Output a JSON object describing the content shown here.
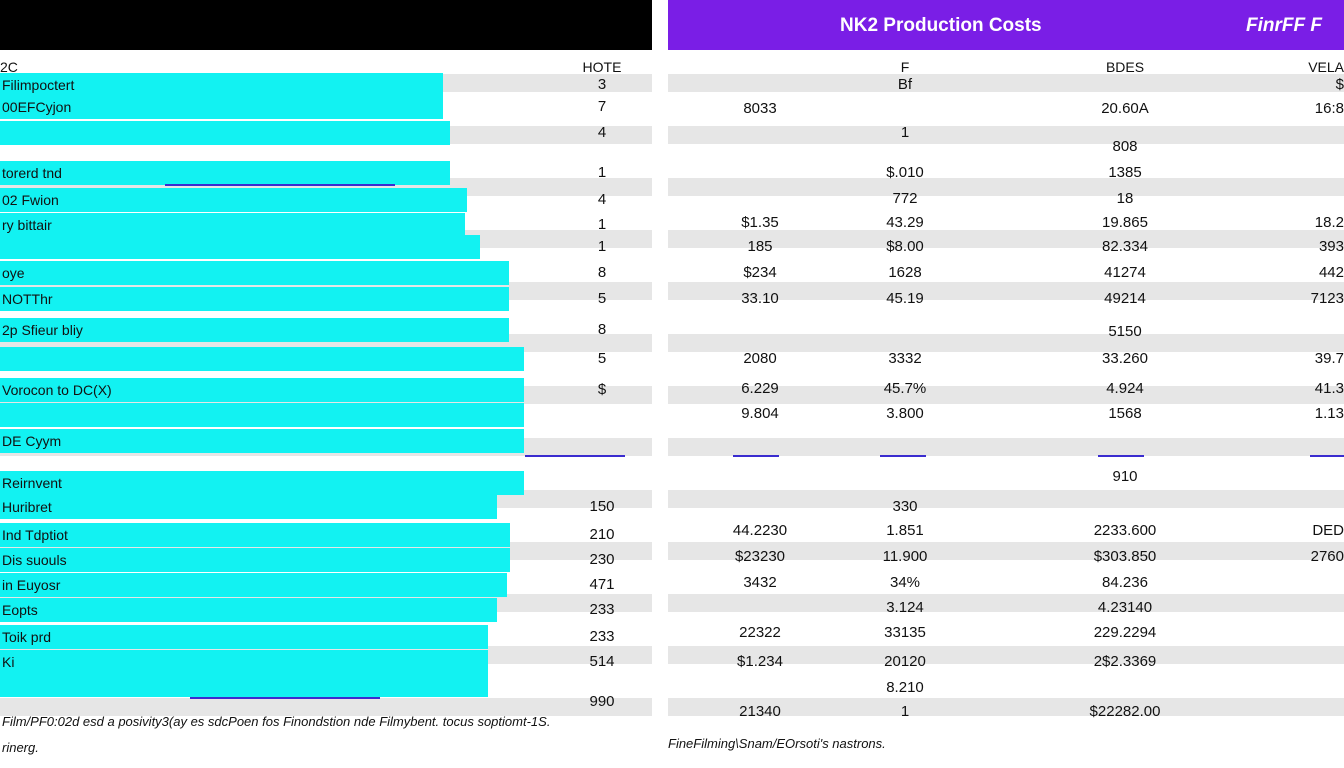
{
  "left_panel": {
    "header": [
      "2C",
      "HOTE"
    ],
    "rows": [
      [
        "Filimpoctert",
        "3"
      ],
      [
        "00EFCyjon",
        "7"
      ],
      [
        null,
        "4"
      ],
      [
        "torerd tnd",
        "1"
      ],
      [
        "02 Fwion",
        "4"
      ],
      [
        "ry bittair",
        "1"
      ],
      [
        null,
        "1"
      ],
      [
        "oye",
        "8"
      ],
      [
        "NOTThr",
        "5"
      ],
      [
        "2p Sfieur bliy",
        "8"
      ],
      [
        null,
        "5"
      ],
      [
        "Vorocon to DC(X)",
        "$"
      ],
      [
        null,
        null
      ],
      [
        "DE Cyym",
        null
      ],
      [
        "Reirnvent",
        null
      ],
      [
        "Huribret",
        "150"
      ],
      [
        "Ind Tdptiot",
        "210"
      ],
      [
        "Dis suouls",
        "230"
      ],
      [
        "in Euyosr",
        "471"
      ],
      [
        "Eopts",
        "233"
      ],
      [
        "Toik prd",
        "233"
      ],
      [
        "Ki",
        "514"
      ],
      [
        null,
        null
      ],
      [
        null,
        "990"
      ]
    ],
    "footer": [
      "Film/PF0:02d esd a posivity3(ay es sdcPoen fos Finondstion nde Filmybent. tocus soptiomt-1S.",
      "rinerg."
    ]
  },
  "right_panel": {
    "title": "NK2 Production Costs",
    "title_right": "FinrFF F",
    "header": [
      null,
      "F",
      "BDES",
      "VELA"
    ],
    "rows": [
      [
        null,
        "Bf",
        null,
        "$"
      ],
      [
        "8033",
        null,
        "20.60A",
        "16:8"
      ],
      [
        null,
        "1",
        null,
        null
      ],
      [
        null,
        null,
        "808",
        null
      ],
      [
        null,
        "$.010",
        "1385",
        null
      ],
      [
        null,
        "772",
        "18",
        null
      ],
      [
        "$1.35",
        "43.29",
        "19.865",
        "18.2"
      ],
      [
        "185",
        "$8.00",
        "82.334",
        "393"
      ],
      [
        "$234",
        "1628",
        "41274",
        "442"
      ],
      [
        "33.10",
        "45.19",
        "49214",
        "7123"
      ],
      [
        null,
        null,
        "5150",
        null
      ],
      [
        "2080",
        "3332",
        "33.260",
        "39.7"
      ],
      [
        "6.229",
        "45.7%",
        "4.924",
        "41.3"
      ],
      [
        "9.804",
        "3.800",
        "1568",
        "1.13"
      ],
      [
        null,
        null,
        "910",
        null
      ],
      [
        null,
        "330",
        null,
        null
      ],
      [
        "44.2230",
        "1.851",
        "2233.600",
        "DED"
      ],
      [
        "$23230",
        "11.900",
        "$303.850",
        "2760"
      ],
      [
        "3432",
        "34%",
        "84.236",
        null
      ],
      [
        null,
        "3.124",
        "4.23140",
        null
      ],
      [
        "22322",
        "33135",
        "229.2294",
        null
      ],
      [
        "$1.234",
        "20120",
        "2$2.3369",
        null
      ],
      [
        null,
        "8.210",
        null,
        null
      ],
      [
        "21340",
        "1",
        "$22282.00",
        null
      ]
    ],
    "footer": "FineFilming\\Snam/EOrsoti's nastrons."
  }
}
